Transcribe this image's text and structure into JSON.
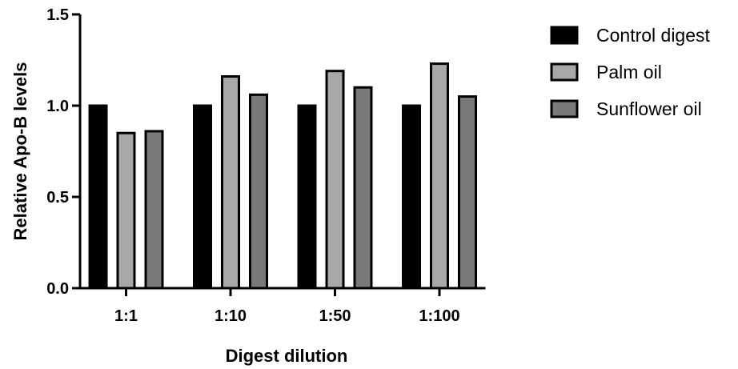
{
  "chart_data": {
    "type": "bar",
    "categories": [
      "1:1",
      "1:10",
      "1:50",
      "1:100"
    ],
    "series": [
      {
        "name": "Control digest",
        "values": [
          1.0,
          1.0,
          1.0,
          1.0
        ],
        "color": "#000000"
      },
      {
        "name": "Palm oil",
        "values": [
          0.85,
          1.16,
          1.19,
          1.23
        ],
        "color": "#a8a8a8"
      },
      {
        "name": "Sunflower oil",
        "values": [
          0.86,
          1.06,
          1.1,
          1.05
        ],
        "color": "#7a7a7a"
      }
    ],
    "xlabel": "Digest dilution",
    "ylabel": "Relative Apo-B levels",
    "ylim": [
      0,
      1.5
    ],
    "yticks": [
      0.0,
      0.5,
      1.0,
      1.5
    ],
    "ytick_labels": [
      "0.0",
      "0.5",
      "1.0",
      "1.5"
    ],
    "grid": false,
    "legend_position": "right"
  }
}
